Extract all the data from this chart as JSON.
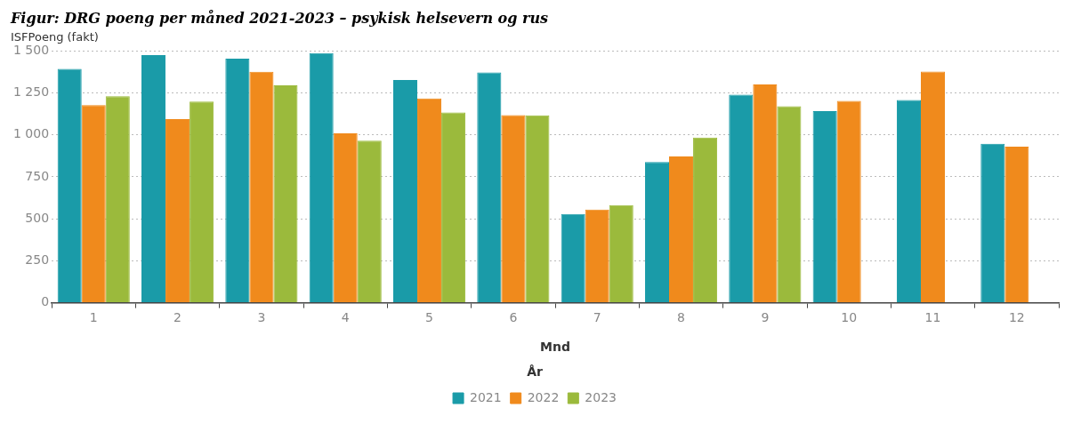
{
  "chart_data": {
    "type": "bar",
    "title": "Figur: DRG poeng per måned 2021-2023 – psykisk helsevern og rus",
    "xlabel": "Mnd",
    "ylabel": "ISFPoeng (fakt)",
    "legend_title": "År",
    "categories": [
      "1",
      "2",
      "3",
      "4",
      "5",
      "6",
      "7",
      "8",
      "9",
      "10",
      "11",
      "12"
    ],
    "series": [
      {
        "name": "2021",
        "color": "#1a9ba8",
        "values": [
          1392,
          1474,
          1454,
          1486,
          1327,
          1371,
          529,
          838,
          1239,
          1141,
          1207,
          947
        ]
      },
      {
        "name": "2022",
        "color": "#f08a1c",
        "values": [
          1177,
          1094,
          1376,
          1009,
          1216,
          1117,
          555,
          871,
          1300,
          1202,
          1377,
          929
        ]
      },
      {
        "name": "2023",
        "color": "#9bba3c",
        "values": [
          1230,
          1198,
          1295,
          965,
          1133,
          1116,
          582,
          984,
          1170,
          null,
          null,
          null
        ]
      }
    ],
    "ylim": [
      0,
      1500
    ],
    "yticks": [
      0,
      250,
      500,
      750,
      {
        "value": 1000,
        "label": "1 000"
      },
      {
        "value": 1250,
        "label": "1 250"
      },
      {
        "value": 1500,
        "label": "1 500"
      }
    ],
    "grid": "y",
    "legend": "bottom"
  }
}
